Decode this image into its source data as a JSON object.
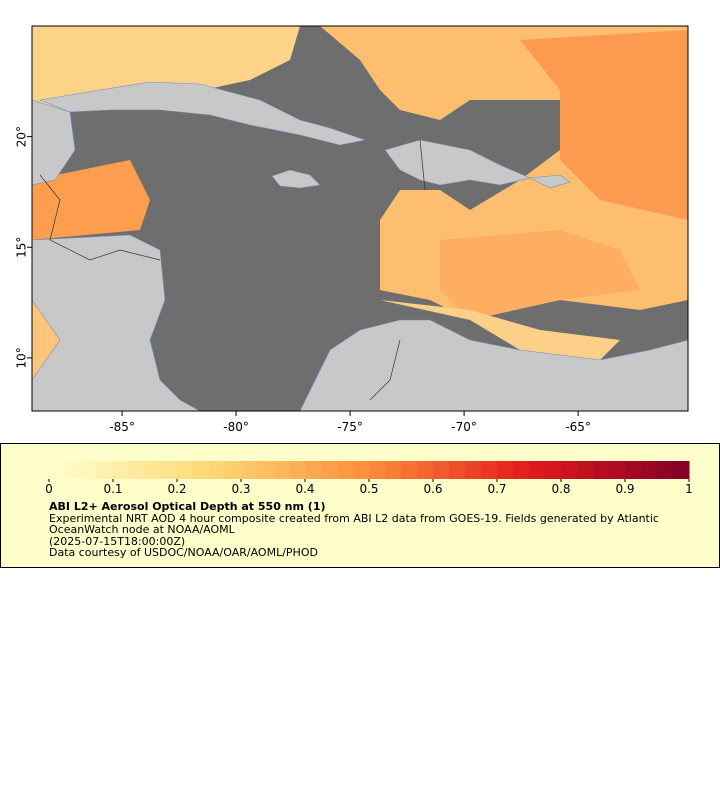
{
  "map": {
    "xlim": [
      -88.95,
      -60.18
    ],
    "ylim": [
      7.6,
      25.0
    ],
    "xticks": [
      {
        "value": -85,
        "label": "-85°"
      },
      {
        "value": -80,
        "label": "-80°"
      },
      {
        "value": -75,
        "label": "-75°"
      },
      {
        "value": -70,
        "label": "-70°"
      },
      {
        "value": -65,
        "label": "-65°"
      }
    ],
    "yticks": [
      {
        "value": 20,
        "label": "20°"
      },
      {
        "value": 15,
        "label": "15°"
      },
      {
        "value": 10,
        "label": "10°"
      }
    ]
  },
  "colorbar": {
    "lim": [
      0,
      1
    ],
    "ticks": [
      0,
      0.1,
      0.2,
      0.3,
      0.4,
      0.5,
      0.6,
      0.7,
      0.8,
      0.9,
      1
    ],
    "colors": [
      "#ffffcc",
      "#fed976",
      "#fd8d3c",
      "#e31a1c",
      "#800026"
    ]
  },
  "legend": {
    "title": "ABI L2+ Aerosol Optical Depth at 550 nm (1)",
    "description": "Experimental NRT AOD 4 hour composite created from ABI L2 data from GOES-19. Fields generated by Atlantic OceanWatch node at NOAA/AOML",
    "time": "(2025-07-15T18:00:00Z)",
    "credit": "Data courtesy of USDOC/NOAA/OAR/AOML/PHOD"
  }
}
